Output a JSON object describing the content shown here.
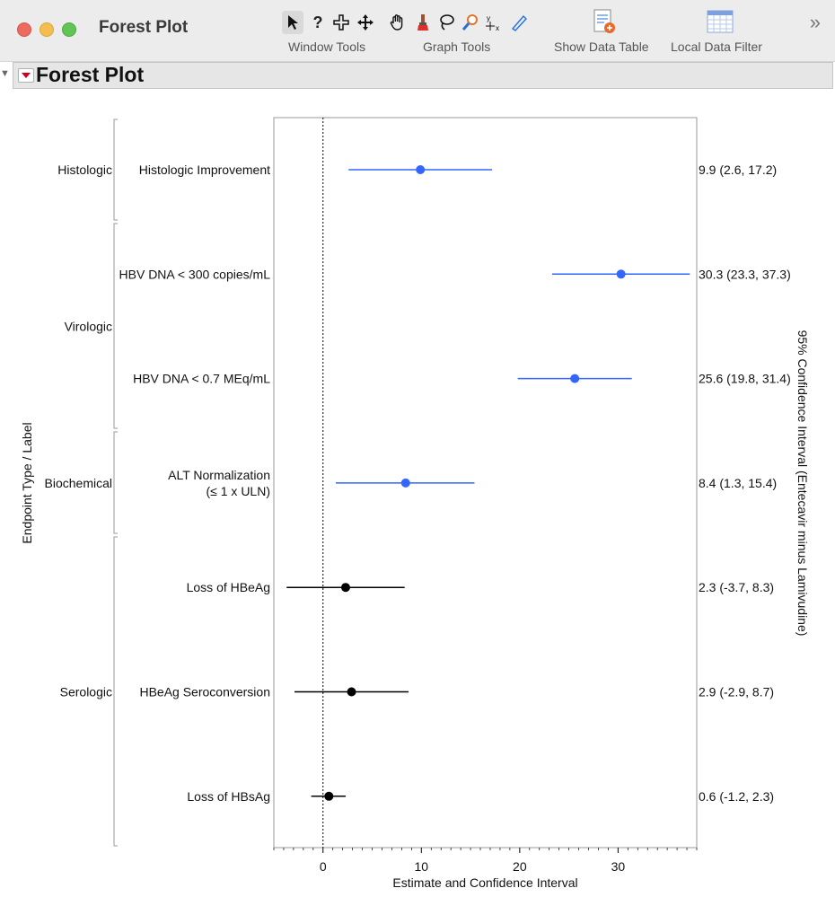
{
  "window": {
    "title": "Forest Plot",
    "toolbar": {
      "groups": [
        {
          "label": "Window Tools"
        },
        {
          "label": "Graph Tools"
        },
        {
          "label": "Show Data Table"
        },
        {
          "label": "Local Data Filter"
        }
      ],
      "icons": [
        "arrow-cursor-icon",
        "help-icon",
        "crosshair-icon",
        "move-icon",
        "hand-icon",
        "brush-icon",
        "lasso-icon",
        "magnifier-icon",
        "annotate-icon",
        "ruler-icon",
        "data-table-icon",
        "data-filter-icon"
      ],
      "overflow_glyph": "»"
    }
  },
  "outline": {
    "title": "Forest Plot"
  },
  "chart_data": {
    "type": "forest",
    "xlabel": "Estimate and Confidence Interval",
    "ylabel": "Endpoint Type / Label",
    "right_axis_label": "95% Confidence Interval (Entecavir minus Lamivudine)",
    "xlim": [
      -5,
      38
    ],
    "xticks": [
      0,
      10,
      20,
      30
    ],
    "reference_line": 0,
    "colors": {
      "highlight": "#3366ff",
      "default": "#000000"
    },
    "groups": [
      {
        "name": "Histologic",
        "rows": [
          0
        ]
      },
      {
        "name": "Virologic",
        "rows": [
          1,
          2
        ]
      },
      {
        "name": "Biochemical",
        "rows": [
          3
        ]
      },
      {
        "name": "Serologic",
        "rows": [
          4,
          5,
          6
        ]
      }
    ],
    "rows": [
      {
        "label": [
          "Histologic Improvement"
        ],
        "estimate": 9.9,
        "lower": 2.6,
        "upper": 17.2,
        "ci_text": "9.9 (2.6, 17.2)",
        "color": "#3366ff"
      },
      {
        "label": [
          "HBV DNA < 300 copies/mL"
        ],
        "estimate": 30.3,
        "lower": 23.3,
        "upper": 37.3,
        "ci_text": "30.3 (23.3, 37.3)",
        "color": "#3366ff"
      },
      {
        "label": [
          "HBV DNA < 0.7 MEq/mL"
        ],
        "estimate": 25.6,
        "lower": 19.8,
        "upper": 31.4,
        "ci_text": "25.6 (19.8, 31.4)",
        "color": "#3366ff"
      },
      {
        "label": [
          "ALT  Normalization",
          "(≤ 1 x ULN)"
        ],
        "estimate": 8.4,
        "lower": 1.3,
        "upper": 15.4,
        "ci_text": "8.4 (1.3, 15.4)",
        "color": "#3366ff"
      },
      {
        "label": [
          "Loss of HBeAg"
        ],
        "estimate": 2.3,
        "lower": -3.7,
        "upper": 8.3,
        "ci_text": "2.3 (-3.7, 8.3)",
        "color": "#000000"
      },
      {
        "label": [
          "HBeAg Seroconversion"
        ],
        "estimate": 2.9,
        "lower": -2.9,
        "upper": 8.7,
        "ci_text": "2.9 (-2.9, 8.7)",
        "color": "#000000"
      },
      {
        "label": [
          "Loss of HBsAg"
        ],
        "estimate": 0.6,
        "lower": -1.2,
        "upper": 2.3,
        "ci_text": "0.6 (-1.2, 2.3)",
        "color": "#000000"
      }
    ]
  }
}
